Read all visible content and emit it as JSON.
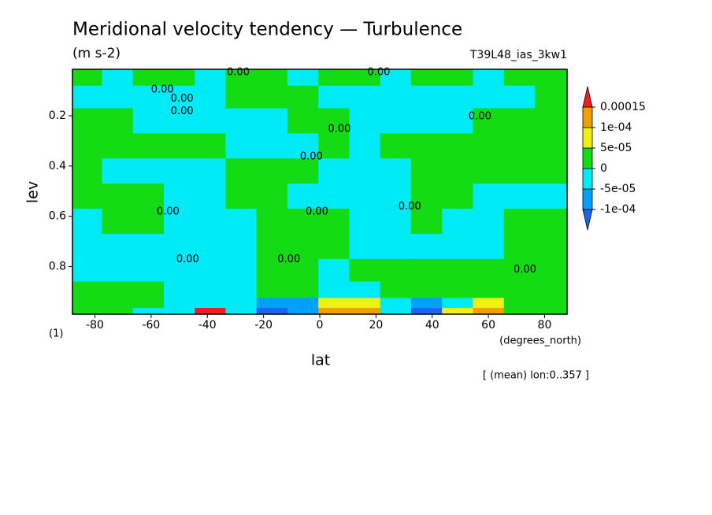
{
  "chart_data": {
    "type": "contour",
    "title": "Meridional velocity tendency — Turbulence",
    "subtitle": "(m s-2)",
    "run_label": "T39L48_ias_3kw1",
    "x_label": "lat",
    "y_label": "lev",
    "x_unit": "(degrees_north)",
    "y_unit": "(1)",
    "footnote": "[ (mean) lon:0..357 ]",
    "xlim": [
      -88,
      88
    ],
    "ylim": [
      0.99,
      0.015
    ],
    "xticks": [
      -80,
      -60,
      -40,
      -20,
      0,
      20,
      40,
      60,
      80
    ],
    "yticks": [
      0.2,
      0.4,
      0.6,
      0.8
    ],
    "lat": [
      -83,
      -72,
      -61,
      -50,
      -39,
      -28,
      -17,
      -6,
      5,
      16,
      27,
      38,
      49,
      60,
      71,
      82
    ],
    "lev": [
      0.04,
      0.12,
      0.22,
      0.32,
      0.42,
      0.52,
      0.62,
      0.72,
      0.82,
      0.9,
      0.95,
      0.98
    ],
    "z": [
      [
        2e-05,
        -2e-05,
        2e-05,
        2e-05,
        -2e-05,
        2e-05,
        2e-05,
        -2e-05,
        2e-05,
        2e-05,
        -2e-05,
        2e-05,
        2e-05,
        -2e-05,
        2e-05,
        2e-05
      ],
      [
        -2e-05,
        -2e-05,
        -2e-05,
        -2e-05,
        -2e-05,
        2e-05,
        2e-05,
        2e-05,
        -2e-05,
        -2e-05,
        -2e-05,
        -2e-05,
        -2e-05,
        -2e-05,
        -2e-05,
        2e-05
      ],
      [
        2e-05,
        2e-05,
        -2e-05,
        -2e-05,
        -2e-05,
        -2e-05,
        -2e-05,
        2e-05,
        2e-05,
        -2e-05,
        -2e-05,
        -2e-05,
        -2e-05,
        2e-05,
        2e-05,
        2e-05
      ],
      [
        2e-05,
        2e-05,
        2e-05,
        2e-05,
        2e-05,
        -2e-05,
        -2e-05,
        -2e-05,
        2e-05,
        -2e-05,
        2e-05,
        2e-05,
        2e-05,
        2e-05,
        2e-05,
        2e-05
      ],
      [
        2e-05,
        -2e-05,
        -2e-05,
        -2e-05,
        -2e-05,
        2e-05,
        2e-05,
        2e-05,
        -2e-05,
        -2e-05,
        -2e-05,
        2e-05,
        2e-05,
        2e-05,
        2e-05,
        2e-05
      ],
      [
        2e-05,
        2e-05,
        2e-05,
        -2e-05,
        -2e-05,
        2e-05,
        2e-05,
        -2e-05,
        -2e-05,
        -2e-05,
        -2e-05,
        2e-05,
        2e-05,
        -2e-05,
        -2e-05,
        -2e-05
      ],
      [
        -2e-05,
        2e-05,
        2e-05,
        -2e-05,
        -2e-05,
        -2e-05,
        2e-05,
        2e-05,
        2e-05,
        -2e-05,
        -2e-05,
        2e-05,
        -2e-05,
        -2e-05,
        2e-05,
        2e-05
      ],
      [
        -2e-05,
        -2e-05,
        -2e-05,
        -2e-05,
        -2e-05,
        -2e-05,
        2e-05,
        2e-05,
        2e-05,
        -2e-05,
        -2e-05,
        -2e-05,
        -2e-05,
        -2e-05,
        2e-05,
        2e-05
      ],
      [
        -2e-05,
        -2e-05,
        -2e-05,
        -2e-05,
        -2e-05,
        -2e-05,
        2e-05,
        2e-05,
        -2e-05,
        2e-05,
        2e-05,
        2e-05,
        2e-05,
        2e-05,
        2e-05,
        2e-05
      ],
      [
        2e-05,
        2e-05,
        2e-05,
        -2e-05,
        -2e-05,
        -2e-05,
        2e-05,
        2e-05,
        -2e-05,
        -2e-05,
        2e-05,
        2e-05,
        2e-05,
        2e-05,
        2e-05,
        2e-05
      ],
      [
        2e-05,
        2e-05,
        2e-05,
        -2e-05,
        -2e-05,
        -2e-05,
        -7e-05,
        -7e-05,
        7e-05,
        7e-05,
        -2e-05,
        -7e-05,
        -2e-05,
        7e-05,
        2e-05,
        2e-05
      ],
      [
        2e-05,
        2e-05,
        -2e-05,
        -2e-05,
        0.00016,
        -2e-05,
        -0.00012,
        -7e-05,
        0.00012,
        0.00012,
        -2e-05,
        -0.00012,
        7e-05,
        0.00012,
        2e-05,
        2e-05
      ]
    ],
    "levels": [
      {
        "value": -0.0001,
        "label": "-1e-04"
      },
      {
        "value": -5e-05,
        "label": "-5e-05"
      },
      0,
      {
        "value": 5e-05,
        "label": "5e-05"
      },
      {
        "value": 0.0001,
        "label": "1e-04"
      },
      0.00015
    ],
    "colors": [
      "#1e64f0",
      "#00a0ff",
      "#00ebf5",
      "#14dc14",
      "#f0f014",
      "#f0a000",
      "#f01e1e"
    ],
    "contour_labels": [
      {
        "text": "0.00",
        "x": -56,
        "y": 0.084
      },
      {
        "text": "0.00",
        "x": -49,
        "y": 0.12
      },
      {
        "text": "0.00",
        "x": -49,
        "y": 0.17
      },
      {
        "text": "0.00",
        "x": 7,
        "y": 0.24
      },
      {
        "text": "0.00",
        "x": 57,
        "y": 0.19
      },
      {
        "text": "0.00",
        "x": -3,
        "y": 0.35
      },
      {
        "text": "0.00",
        "x": -54,
        "y": 0.57
      },
      {
        "text": "0.00",
        "x": -1,
        "y": 0.57
      },
      {
        "text": "0.00",
        "x": 32,
        "y": 0.55
      },
      {
        "text": "0.00",
        "x": -47,
        "y": 0.76
      },
      {
        "text": "0.00",
        "x": -11,
        "y": 0.76
      },
      {
        "text": "0.00",
        "x": 73,
        "y": 0.8
      },
      {
        "text": "0.00",
        "x": -29,
        "y": 0.015
      },
      {
        "text": "0.00",
        "x": 21,
        "y": 0.015
      }
    ]
  }
}
